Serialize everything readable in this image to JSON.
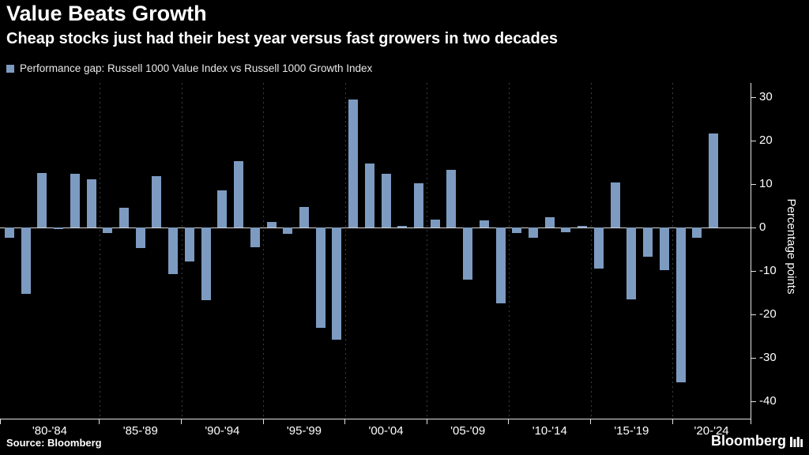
{
  "header": {
    "title": "Value Beats Growth",
    "subtitle": "Cheap stocks just had their best year versus fast growers in two decades"
  },
  "legend": {
    "label": "Performance gap: Russell 1000 Value Index vs Russell 1000 Growth Index"
  },
  "colors": {
    "bar": "#7d9bc1",
    "background": "#000000",
    "axis": "#e2e2e2",
    "grid": "#3d3d3d",
    "zero_line": "#d6d6d6",
    "text": "#ffffff"
  },
  "chart_data": {
    "type": "bar",
    "title": "Value Beats Growth",
    "subtitle": "Cheap stocks just had their best year versus fast growers in two decades",
    "series_name": "Performance gap: Russell 1000 Value Index vs Russell 1000 Growth Index",
    "x": [
      1979,
      1980,
      1981,
      1982,
      1983,
      1984,
      1985,
      1986,
      1987,
      1988,
      1989,
      1990,
      1991,
      1992,
      1993,
      1994,
      1995,
      1996,
      1997,
      1998,
      1999,
      2000,
      2001,
      2002,
      2003,
      2004,
      2005,
      2006,
      2007,
      2008,
      2009,
      2010,
      2011,
      2012,
      2013,
      2014,
      2015,
      2016,
      2017,
      2018,
      2019,
      2020,
      2021,
      2022
    ],
    "values": [
      -2.3,
      -15.2,
      12.6,
      -0.4,
      12.3,
      11.1,
      -1.3,
      4.6,
      -4.8,
      11.9,
      -10.7,
      -7.8,
      -16.7,
      8.6,
      15.2,
      -4.6,
      1.2,
      -1.5,
      4.7,
      -23.1,
      -25.8,
      29.4,
      14.8,
      12.4,
      0.3,
      10.2,
      1.8,
      13.2,
      -12,
      1.6,
      -17.5,
      -1.2,
      -2.3,
      2.3,
      -1,
      0.4,
      -9.5,
      10.3,
      -16.6,
      -6.8,
      -9.9,
      -35.7,
      -2.4,
      21.6
    ],
    "xlabel": "",
    "ylabel": "Percentage points",
    "ylim": [
      -44,
      33
    ],
    "yticks": [
      30,
      20,
      10,
      0,
      -10,
      -20,
      -30,
      -40
    ],
    "x_tick_labels": [
      "'80-'84",
      "'85-'89",
      "'90-'94",
      "'95-'99",
      "'00-'04",
      "'05-'09",
      "'10-'14",
      "'15-'19",
      "'20-'24"
    ],
    "grid": "vertical-dashed",
    "legend_position": "top-left",
    "zero_line_value": 0
  },
  "footer": {
    "source": "Source: Bloomberg",
    "brand": "Bloomberg"
  }
}
